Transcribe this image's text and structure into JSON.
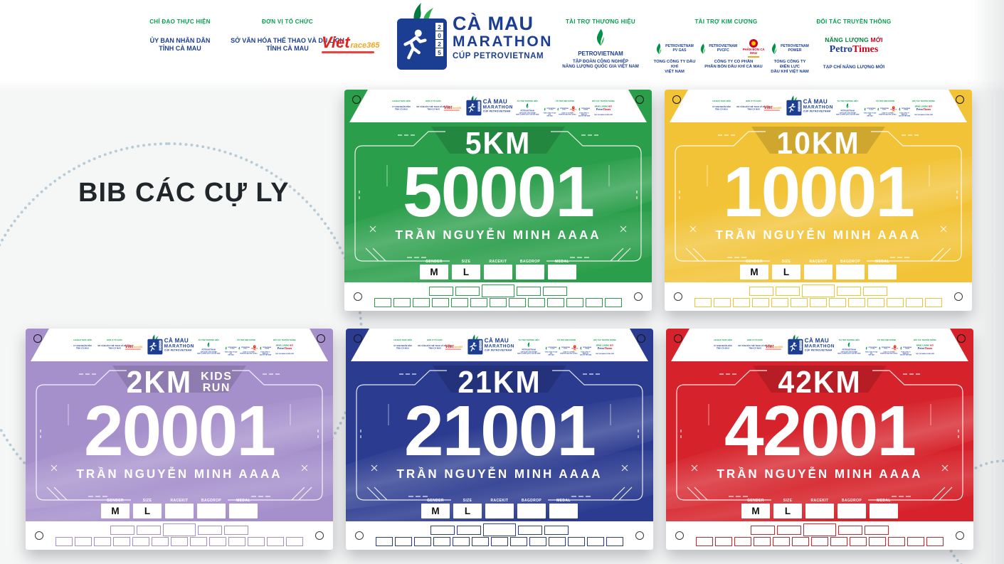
{
  "page": {
    "title": "BIB CÁC CỰ LY"
  },
  "header": {
    "chidao_label": "CHỈ ĐẠO THỰC HIỆN",
    "chidao_line1": "ỦY BAN NHÂN DÂN",
    "chidao_line2": "TỈNH CÀ MAU",
    "donvi_label": "ĐƠN VỊ TỔ CHỨC",
    "donvi_line1": "SỞ VĂN HÓA THỂ THAO VÀ DU LỊCH",
    "donvi_line2": "TỈNH CÀ MAU",
    "vietrace_part1": "Viet",
    "vietrace_part2": "race365",
    "logo_year": [
      "2",
      "0",
      "2",
      "5"
    ],
    "logo_title1": "CÀ MAU",
    "logo_title2": "MARATHON",
    "logo_title3": "CÚP PETROVIETNAM",
    "brand_label": "TÀI TRỢ THƯƠNG HIỆU",
    "brand_name": "PETROVIETNAM",
    "brand_line1": "TẬP ĐOÀN CÔNG NGHIỆP",
    "brand_line2": "NĂNG LƯỢNG QUỐC GIA VIỆT NAM",
    "diamond_label": "TÀI TRỢ KIM CƯƠNG",
    "diamond_sponsors": [
      {
        "name1": "PETROVIETNAM",
        "name2": "PV GAS",
        "line1": "TỔNG CÔNG TY DẦU KHÍ",
        "line2": "VIỆT NAM"
      },
      {
        "name1": "PETROVIETNAM",
        "name2": "PVCFC",
        "badge": "PHÂN BÓN CÀ MAU",
        "line1": "CÔNG TY CỔ PHẦN",
        "line2": "PHÂN BÓN DẦU KHÍ CÀ MAU"
      },
      {
        "name1": "PETROVIETNAM",
        "name2": "POWER",
        "line1": "TỔNG CÔNG TY ĐIỆN LỰC",
        "line2": "DẦU KHÍ VIỆT NAM"
      }
    ],
    "media_label": "ĐỐI TÁC TRUYỀN THÔNG",
    "media_logo_green": "NĂNG LƯỢNG",
    "media_logo_red": "MỚI",
    "media_petro": "Petro",
    "media_times": "Times",
    "media_line": "TẠP CHÍ NĂNG LƯỢNG MỚI"
  },
  "bib_fields": {
    "gender": "GENDER",
    "size": "SIZE",
    "racekit": "RACEKIT",
    "bagdrop": "BAGDROP",
    "medal": "MEDAL"
  },
  "bibs": [
    {
      "distance": "5KM",
      "number": "50001",
      "name": "TRẦN NGUYỄN MINH AAAA",
      "gender": "M",
      "size": "L",
      "color": "#2a9e4a",
      "color_dark": "#167a38"
    },
    {
      "distance": "10KM",
      "number": "10001",
      "name": "TRẦN NGUYỄN MINH AAAA",
      "gender": "M",
      "size": "L",
      "color": "#f2c336",
      "color_dark": "#d9a71c"
    },
    {
      "distance": "2KM",
      "kids_line1": "KIDS",
      "kids_line2": "RUN",
      "number": "20001",
      "name": "TRẦN NGUYỄN MINH AAAA",
      "gender": "M",
      "size": "L",
      "color": "#a690cc",
      "color_dark": "#8b72b5"
    },
    {
      "distance": "21KM",
      "number": "21001",
      "name": "TRẦN NGUYỄN MINH AAAA",
      "gender": "M",
      "size": "L",
      "color": "#2b3b90",
      "color_dark": "#1d2a6e"
    },
    {
      "distance": "42KM",
      "number": "42001",
      "name": "TRẦN NGUYỄN MINH AAAA",
      "gender": "M",
      "size": "L",
      "color": "#d6222a",
      "color_dark": "#b0161d"
    }
  ]
}
